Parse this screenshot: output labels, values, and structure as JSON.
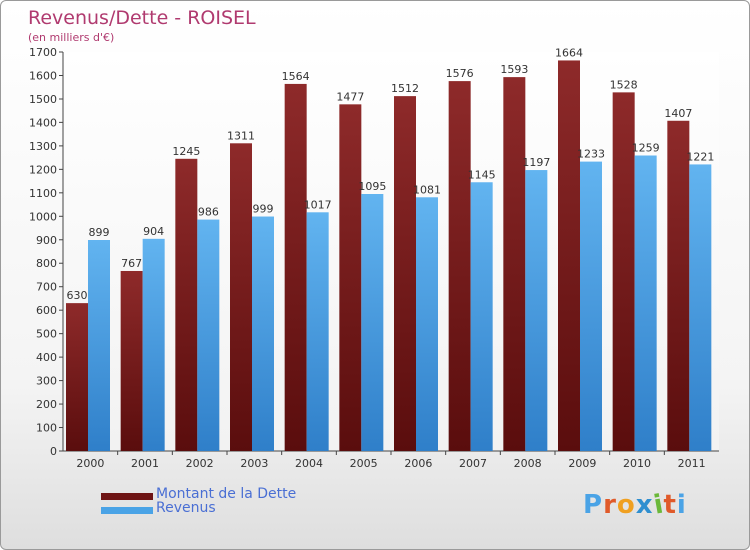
{
  "header": {
    "title": "Revenus/Dette - ROISEL",
    "subtitle": "(en milliers d'€)"
  },
  "legend": {
    "debt_label": "Montant de la Dette",
    "revenue_label": "Revenus"
  },
  "logo": {
    "text": "Proxiti"
  },
  "colors": {
    "debt": "#7b1e1e",
    "revenue": "#4aa3e6",
    "title": "#b03a6f",
    "legend_text": "#4a6fd4"
  },
  "chart_data": {
    "type": "bar",
    "title": "Revenus/Dette - ROISEL",
    "subtitle": "(en milliers d'€)",
    "categories": [
      "2000",
      "2001",
      "2002",
      "2003",
      "2004",
      "2005",
      "2006",
      "2007",
      "2008",
      "2009",
      "2010",
      "2011"
    ],
    "series": [
      {
        "name": "Montant de la Dette",
        "values": [
          630,
          767,
          1245,
          1311,
          1564,
          1477,
          1512,
          1576,
          1593,
          1664,
          1528,
          1407
        ]
      },
      {
        "name": "Revenus",
        "values": [
          899,
          904,
          986,
          999,
          1017,
          1095,
          1081,
          1145,
          1197,
          1233,
          1259,
          1221
        ]
      }
    ],
    "ylim": [
      0,
      1700
    ],
    "yticks": [
      0,
      100,
      200,
      300,
      400,
      500,
      600,
      700,
      800,
      900,
      1000,
      1100,
      1200,
      1300,
      1400,
      1500,
      1600,
      1700
    ],
    "grid": false,
    "legend_position": "bottom-left"
  }
}
